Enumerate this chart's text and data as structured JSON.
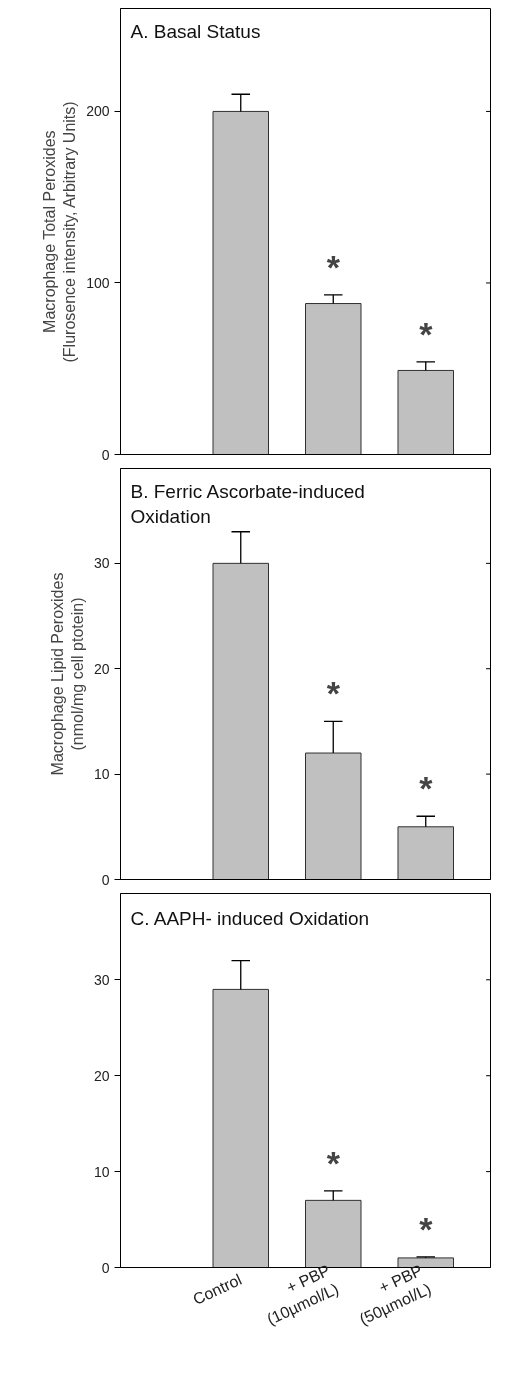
{
  "chart_data": [
    {
      "type": "bar",
      "title": "A. Basal Status",
      "ylabel": "Macrophage Total Peroxides (Flurosence intensity, Arbitrary Units)",
      "categories": [
        "Control",
        "+ PBP (10µmol/L)",
        "+ PBP (50µmol/L)"
      ],
      "values": [
        200,
        88,
        49
      ],
      "errors": [
        [
          200,
          210
        ],
        [
          88,
          93
        ],
        [
          49,
          54
        ]
      ],
      "color": "#c0c0c0",
      "ylim": [
        0,
        260
      ],
      "yticks": [
        0,
        100,
        200
      ],
      "tick_labels": "y",
      "grid": false,
      "annotations": [
        "*",
        "*"
      ]
    },
    {
      "type": "bar",
      "title": "B. Ferric Ascorbate-induced Oxidation",
      "ylabel": "Macrophage Lipid Peroxides (nmol/mg cell ptotein)",
      "categories": [
        "Control",
        "+ PBP (10µmol/L)",
        "+ PBP (50µmol/L)"
      ],
      "values": [
        30,
        12,
        5
      ],
      "errors": [
        [
          30,
          33
        ],
        [
          12,
          15
        ],
        [
          5,
          6
        ]
      ],
      "color": "#c0c0c0",
      "ylim": [
        0,
        39
      ],
      "yticks": [
        0,
        10,
        20,
        30
      ],
      "tick_labels": "y",
      "grid": false,
      "annotations": [
        "*",
        "*"
      ]
    },
    {
      "type": "bar",
      "title": "C. AAPH- induced Oxidation",
      "categories": [
        "Control",
        "+ PBP (10µmol/L)",
        "+ PBP (50µmol/L)"
      ],
      "values": [
        29,
        7,
        1
      ],
      "errors": [
        [
          29,
          32
        ],
        [
          7,
          8
        ],
        [
          1,
          1.1
        ]
      ],
      "color": "#c0c0c0",
      "ylim": [
        0,
        39
      ],
      "yticks": [
        0,
        10,
        20,
        30
      ],
      "grid": false,
      "annotations": [
        "*",
        "*"
      ]
    }
  ]
}
